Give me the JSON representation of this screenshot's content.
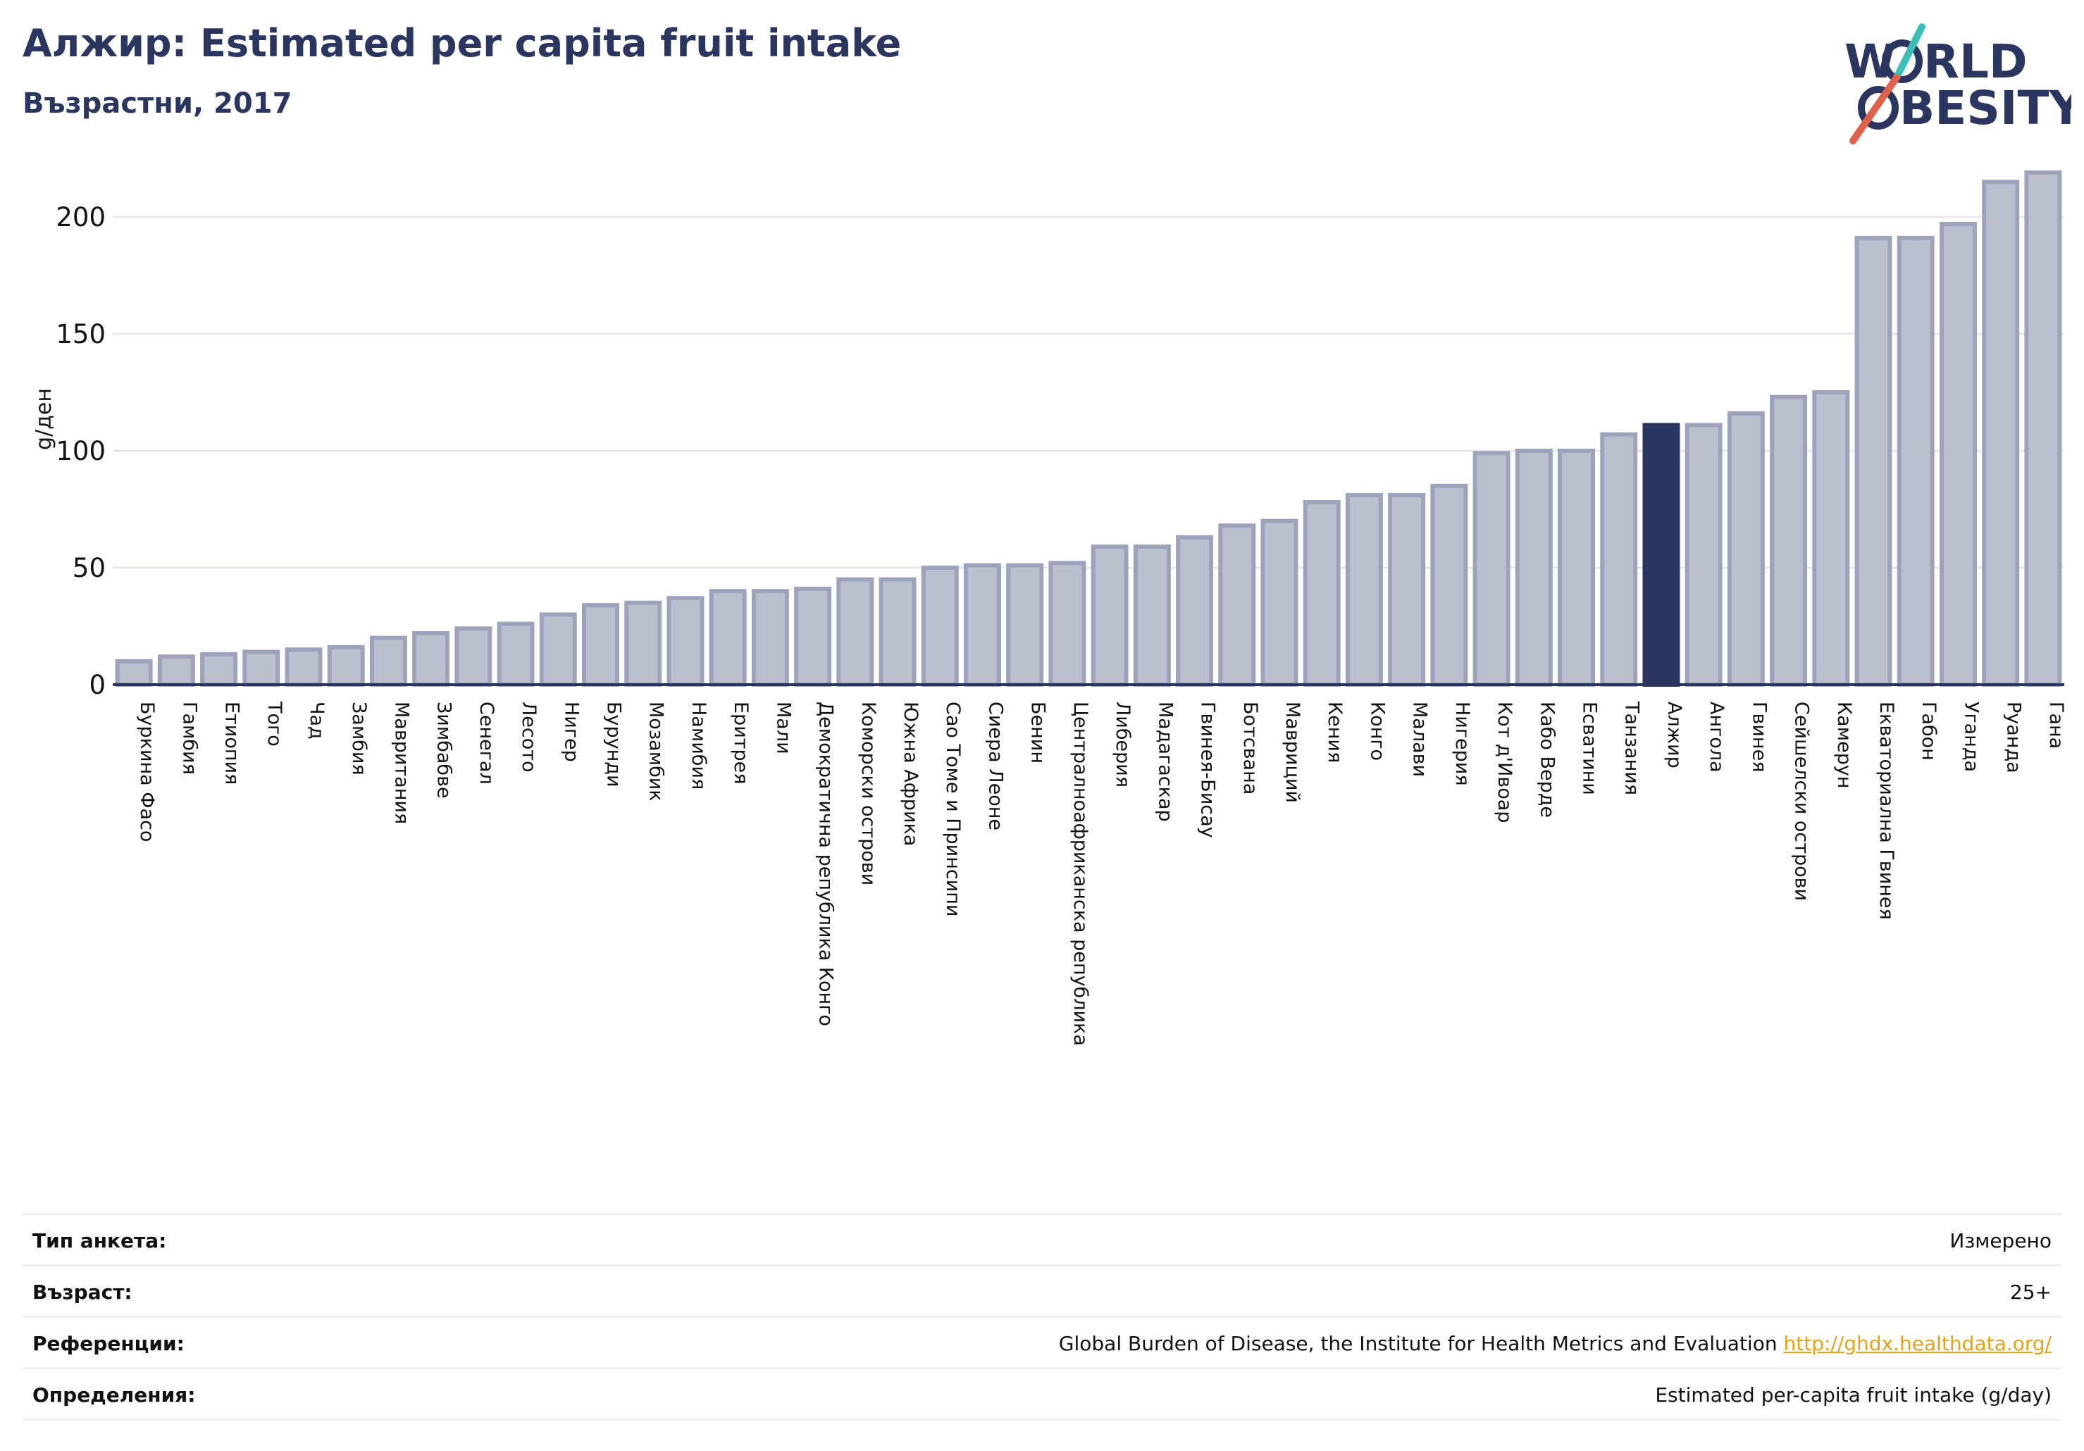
{
  "header": {
    "title": "Алжир: Estimated per capita fruit intake",
    "subtitle": "Възрастни, 2017"
  },
  "logo": {
    "line1": "W RLD",
    "line2": "BESITY",
    "text_color": "#2a3560",
    "slash_teal": "#3bbfb8",
    "slash_red": "#e0604a"
  },
  "colors": {
    "bar_fill": "#bcc0ce",
    "bar_stroke": "#9ea3bb",
    "highlight": "#2a3560",
    "grid": "#e6e8ee",
    "axis": "#2a3560"
  },
  "chart_data": {
    "type": "bar",
    "title": "",
    "xlabel": "",
    "ylabel": "g/ден",
    "ylim": [
      0,
      225
    ],
    "yticks": [
      0,
      50,
      100,
      150,
      200
    ],
    "grid": true,
    "highlight": "Алжир",
    "categories": [
      "Буркина Фасо",
      "Гамбия",
      "Етиопия",
      "Того",
      "Чад",
      "Замбия",
      "Мавритания",
      "Зимбабве",
      "Сенегал",
      "Лесото",
      "Нигер",
      "Бурунди",
      "Мозамбик",
      "Намибия",
      "Еритрея",
      "Мали",
      "Демократична република Конго",
      "Коморски острови",
      "Южна Африка",
      "Сао Томе и Принсипи",
      "Сиера Леоне",
      "Бенин",
      "Централноафриканска република",
      "Либерия",
      "Мадагаскар",
      "Гвинея-Бисау",
      "Ботсвана",
      "Мавриций",
      "Кения",
      "Конго",
      "Малави",
      "Нигерия",
      "Кот д'Ивоар",
      "Кабо Верде",
      "Есватини",
      "Танзания",
      "Алжир",
      "Ангола",
      "Гвинея",
      "Сейшелски острови",
      "Камерун",
      "Екваториална Гвинея",
      "Габон",
      "Уганда",
      "Руанда",
      "Гана"
    ],
    "values": [
      10,
      12,
      13,
      14,
      15,
      16,
      20,
      22,
      24,
      26,
      30,
      34,
      35,
      37,
      40,
      40,
      41,
      45,
      45,
      50,
      51,
      51,
      52,
      59,
      59,
      63,
      68,
      70,
      78,
      81,
      81,
      85,
      99,
      100,
      100,
      107,
      111,
      111,
      116,
      123,
      125,
      191,
      191,
      197,
      215,
      219
    ]
  },
  "info": [
    {
      "label": "Тип анкета:",
      "value": "Измерено"
    },
    {
      "label": "Възраст:",
      "value": "25+"
    },
    {
      "label": "Референции:",
      "value": "Global Burden of Disease, the Institute for Health Metrics and Evaluation ",
      "link": "http://ghdx.healthdata.org/"
    },
    {
      "label": "Определения:",
      "value": "Estimated per-capita fruit intake (g/day)"
    }
  ]
}
